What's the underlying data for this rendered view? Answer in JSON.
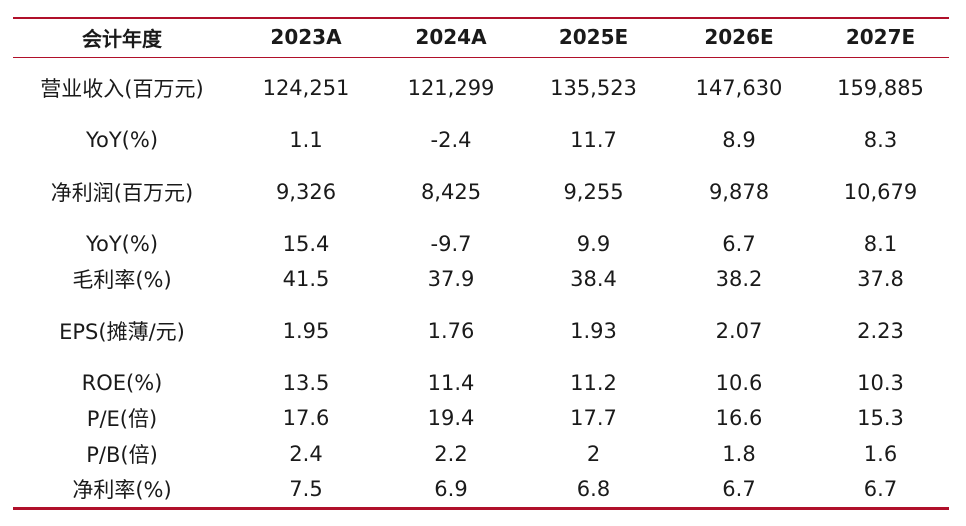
{
  "table": {
    "headers": [
      "会计年度",
      "2023A",
      "2024A",
      "2025E",
      "2026E",
      "2027E"
    ],
    "rows": [
      [
        "营业收入(百万元)",
        "124,251",
        "121,299",
        "135,523",
        "147,630",
        "159,885"
      ],
      [
        "YoY(%)",
        "1.1",
        "-2.4",
        "11.7",
        "8.9",
        "8.3"
      ],
      [
        "净利润(百万元)",
        "9,326",
        "8,425",
        "9,255",
        "9,878",
        "10,679"
      ],
      [
        "YoY(%)",
        "15.4",
        "-9.7",
        "9.9",
        "6.7",
        "8.1"
      ],
      [
        "毛利率(%)",
        "41.5",
        "37.9",
        "38.4",
        "38.2",
        "37.8"
      ],
      [
        "EPS(摊薄/元)",
        "1.95",
        "1.76",
        "1.93",
        "2.07",
        "2.23"
      ],
      [
        "ROE(%)",
        "13.5",
        "11.4",
        "11.2",
        "10.6",
        "10.3"
      ],
      [
        "P/E(倍)",
        "17.6",
        "19.4",
        "17.7",
        "16.6",
        "15.3"
      ],
      [
        "P/B(倍)",
        "2.4",
        "2.2",
        "2",
        "1.8",
        "1.6"
      ],
      [
        "净利率(%)",
        "7.5",
        "6.9",
        "6.8",
        "6.7",
        "6.7"
      ]
    ]
  },
  "colors": {
    "rule": "#b0102a",
    "text": "#1a1a1a"
  }
}
